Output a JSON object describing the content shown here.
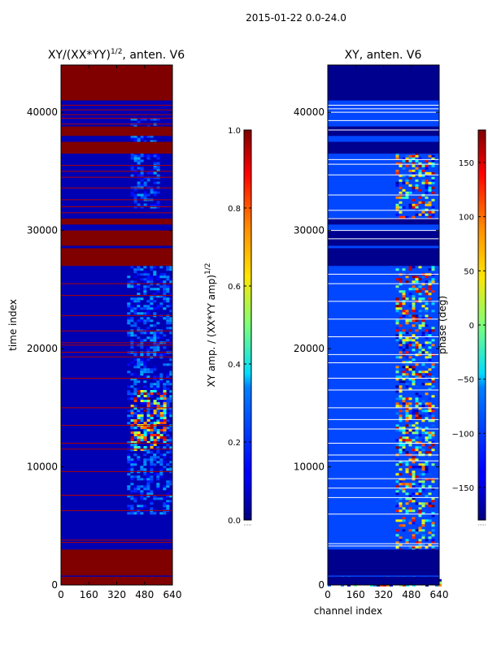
{
  "chart_data": [
    {
      "type": "heatmap",
      "suptitle": "2015-01-22 0.0-24.0",
      "title": "XY/(XX*YY)^{1/2}, anten. V6",
      "title_base": "XY/(XX*YY)",
      "title_exp": "1/2",
      "title_tail": ", anten. V6",
      "xlabel": "",
      "ylabel": "time index",
      "xlim": [
        0,
        640
      ],
      "ylim": [
        0,
        44000
      ],
      "xticks": [
        0,
        160,
        320,
        480,
        640
      ],
      "yticks": [
        0,
        10000,
        20000,
        30000,
        40000
      ],
      "colorbar": {
        "label": "XY amp. / (XX*YY amp)^{1/2}",
        "label_base": "XY amp. / (XX*YY amp)",
        "label_exp": "1/2",
        "range": [
          0.0,
          1.0
        ],
        "ticks": [
          0.0,
          0.2,
          0.4,
          0.6,
          0.8,
          1.0
        ],
        "tick_labels": [
          "0.0",
          "0.2",
          "0.4",
          "0.6",
          "0.8",
          "1.0"
        ],
        "colormap": "jet"
      },
      "background_value": 0.05,
      "flagged_row_bands": [
        [
          0,
          700
        ],
        [
          800,
          3000
        ],
        [
          27000,
          28500
        ],
        [
          28700,
          30000
        ],
        [
          30500,
          31000
        ],
        [
          36500,
          37500
        ],
        [
          38000,
          38800
        ],
        [
          41000,
          44000
        ]
      ],
      "flagged_row_lines": [
        3600,
        3800,
        6300,
        7600,
        9600,
        11500,
        12000,
        13500,
        15000,
        17500,
        19300,
        19700,
        20300,
        20500,
        21500,
        22800,
        24500,
        25500,
        31500,
        32000,
        32600,
        33600,
        34500,
        35000,
        35500,
        39000,
        39500,
        39800,
        40200,
        40600
      ],
      "features": [
        {
          "x": [
            380,
            630
          ],
          "y": [
            6000,
            27000
          ],
          "value_range": [
            0.1,
            0.3
          ],
          "pattern": "vertical striping"
        },
        {
          "x": [
            400,
            600
          ],
          "y": [
            11500,
            16500
          ],
          "value_range": [
            0.3,
            1.0
          ],
          "pattern": "bright patches"
        },
        {
          "x": [
            400,
            560
          ],
          "y": [
            32000,
            39500
          ],
          "value_range": [
            0.1,
            0.3
          ],
          "pattern": "faint striping"
        }
      ]
    },
    {
      "type": "heatmap",
      "title": "XY, anten. V6",
      "xlabel": "channel index",
      "ylabel": "",
      "xlim": [
        0,
        640
      ],
      "ylim": [
        0,
        44000
      ],
      "xticks": [
        0,
        160,
        320,
        480,
        640
      ],
      "yticks": [
        0,
        10000,
        20000,
        30000,
        40000
      ],
      "colorbar": {
        "label": "phase (deg)",
        "range": [
          -180,
          180
        ],
        "ticks": [
          -150,
          -100,
          -50,
          0,
          50,
          100,
          150
        ],
        "tick_labels": [
          "−150",
          "−100",
          "−50",
          "0",
          "50",
          "100",
          "150"
        ],
        "colormap": "jet"
      },
      "background_value": -110,
      "flagged_row_bands": [
        [
          0,
          700
        ],
        [
          800,
          3000
        ],
        [
          27000,
          28500
        ],
        [
          28700,
          30000
        ],
        [
          30500,
          31000
        ],
        [
          36500,
          37500
        ],
        [
          38000,
          38800
        ],
        [
          41000,
          44000
        ]
      ],
      "white_row_lines": [
        3300,
        3500,
        6000,
        7400,
        8200,
        9000,
        10500,
        11000,
        12000,
        13200,
        14000,
        15000,
        16500,
        17500,
        18800,
        19500,
        21000,
        22500,
        24000,
        25500,
        26300,
        29300,
        30000,
        31000,
        31700,
        33000,
        34700,
        35600,
        36000,
        38500,
        39300,
        40000,
        40300,
        40600
      ],
      "features": [
        {
          "x": [
            0,
            640
          ],
          "y": [
            0,
            700
          ],
          "value_range": [
            -180,
            180
          ],
          "pattern": "noisy band"
        },
        {
          "x": [
            390,
            610
          ],
          "y": [
            3000,
            27000
          ],
          "value_range": [
            -180,
            180
          ],
          "pattern": "high phase variability"
        },
        {
          "x": [
            390,
            610
          ],
          "y": [
            31000,
            37000
          ],
          "value_range": [
            -180,
            180
          ],
          "pattern": "high phase variability"
        }
      ]
    }
  ]
}
